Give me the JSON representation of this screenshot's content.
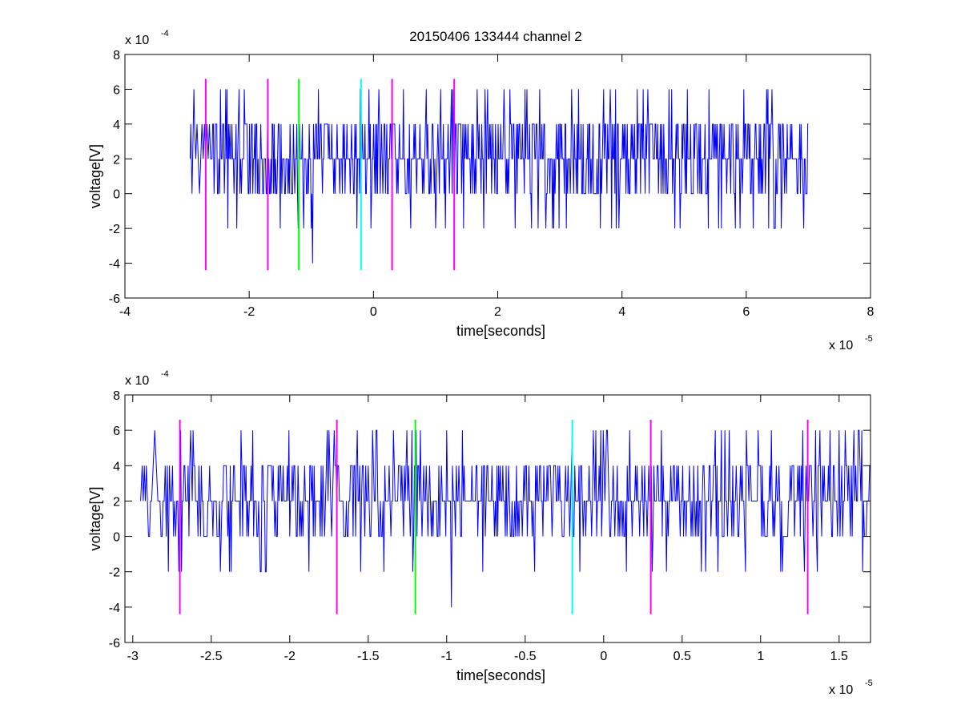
{
  "figure_title": "20150406 133444 channel 2",
  "chart_data": [
    {
      "type": "line",
      "title": "20150406 133444 channel 2",
      "xlabel": "time[seconds]",
      "ylabel": "voltage[V]",
      "x_exponent_label": "x 10",
      "x_exponent": "-5",
      "y_exponent_label": "x 10",
      "y_exponent": "-4",
      "xlim": [
        -4,
        8
      ],
      "ylim": [
        -6,
        8
      ],
      "x_ticks": [
        -4,
        -2,
        0,
        2,
        4,
        6,
        8
      ],
      "x_tick_labels": [
        "-4",
        "-2",
        "0",
        "2",
        "4",
        "6",
        "8"
      ],
      "y_ticks": [
        -6,
        -4,
        -2,
        0,
        2,
        4,
        6,
        8
      ],
      "y_tick_labels": [
        "-6",
        "-4",
        "-2",
        "0",
        "2",
        "4",
        "6",
        "8"
      ],
      "grid": false,
      "legend": "none",
      "series": [
        {
          "color": "#0000ff",
          "x_range": [
            -2.95,
            7.0
          ],
          "level_values": [
            -2,
            0,
            2,
            4,
            6
          ],
          "points": [
            [
              -2.95,
              2
            ],
            [
              -2.94,
              4
            ],
            [
              -2.93,
              2
            ],
            [
              -2.92,
              0
            ],
            [
              -2.91,
              2
            ],
            [
              -2.9,
              4
            ],
            [
              -2.89,
              6
            ],
            [
              -2.88,
              4
            ],
            [
              -2.86,
              2
            ],
            [
              -2.84,
              4
            ],
            [
              -2.82,
              2
            ],
            [
              -2.8,
              0
            ],
            [
              -2.78,
              2
            ],
            [
              -2.76,
              4
            ],
            [
              -2.74,
              2
            ],
            [
              -2.72,
              4
            ],
            [
              -2.7,
              2
            ],
            [
              -2.68,
              4
            ],
            [
              -2.66,
              2
            ],
            [
              -2.64,
              4
            ],
            [
              -2.62,
              2
            ],
            [
              -2.5,
              0
            ],
            [
              -2.45,
              2
            ],
            [
              -2.4,
              0
            ],
            [
              -2.2,
              -2
            ],
            [
              -2.15,
              0
            ],
            [
              -2.1,
              2
            ],
            [
              -1.9,
              0
            ],
            [
              -1.5,
              -2
            ],
            [
              -1.45,
              2
            ],
            [
              -1.3,
              0
            ],
            [
              -1.1,
              2
            ],
            [
              -0.98,
              -4
            ],
            [
              -0.95,
              2
            ],
            [
              -0.5,
              0
            ],
            [
              -0.3,
              4
            ],
            [
              -0.2,
              6
            ],
            [
              0.3,
              2
            ],
            [
              0.6,
              -2
            ],
            [
              0.8,
              2
            ],
            [
              0.85,
              6
            ],
            [
              1.0,
              -2
            ],
            [
              1.05,
              2
            ],
            [
              1.45,
              -2
            ],
            [
              1.5,
              2
            ],
            [
              2.65,
              -2
            ],
            [
              2.7,
              2
            ],
            [
              3.2,
              4
            ],
            [
              3.3,
              6
            ],
            [
              3.95,
              -2
            ],
            [
              4.0,
              2
            ],
            [
              4.8,
              6
            ],
            [
              4.85,
              -2
            ],
            [
              5.2,
              4
            ],
            [
              5.4,
              6
            ],
            [
              5.6,
              -2
            ],
            [
              5.9,
              -2
            ],
            [
              5.95,
              2
            ],
            [
              6.35,
              6
            ],
            [
              7.0,
              4
            ]
          ]
        }
      ],
      "markers": [
        {
          "x": -2.7,
          "y_top": 6.6,
          "y_bottom": -4.4,
          "color": "#ff00ff"
        },
        {
          "x": -1.7,
          "y_top": 6.6,
          "y_bottom": -4.4,
          "color": "#ff00ff"
        },
        {
          "x": -1.2,
          "y_top": 6.6,
          "y_bottom": -4.4,
          "color": "#00ff00"
        },
        {
          "x": -0.2,
          "y_top": 6.6,
          "y_bottom": -4.4,
          "color": "#00ffff"
        },
        {
          "x": 0.3,
          "y_top": 6.6,
          "y_bottom": -4.4,
          "color": "#ff00ff"
        },
        {
          "x": 1.3,
          "y_top": 6.6,
          "y_bottom": -4.4,
          "color": "#ff00ff"
        }
      ]
    },
    {
      "type": "line",
      "title": "",
      "xlabel": "time[seconds]",
      "ylabel": "voltage[V]",
      "x_exponent_label": "x 10",
      "x_exponent": "-5",
      "y_exponent_label": "x 10",
      "y_exponent": "-4",
      "xlim": [
        -3.05,
        1.7
      ],
      "ylim": [
        -6,
        8
      ],
      "x_ticks": [
        -3,
        -2.5,
        -2,
        -1.5,
        -1,
        -0.5,
        0,
        0.5,
        1,
        1.5
      ],
      "x_tick_labels": [
        "-3",
        "-2.5",
        "-2",
        "-1.5",
        "-1",
        "-0.5",
        "0",
        "0.5",
        "1",
        "1.5"
      ],
      "y_ticks": [
        -6,
        -4,
        -2,
        0,
        2,
        4,
        6,
        8
      ],
      "y_tick_labels": [
        "-6",
        "-4",
        "-2",
        "0",
        "2",
        "4",
        "6",
        "8"
      ],
      "grid": false,
      "legend": "none",
      "series": [
        {
          "color": "#0000ff",
          "x_range": [
            -2.95,
            1.7
          ],
          "level_values": [
            -2,
            0,
            2,
            4,
            6
          ],
          "points": [
            [
              -2.95,
              2
            ],
            [
              -2.94,
              4
            ],
            [
              -2.92,
              2
            ],
            [
              -2.9,
              0
            ],
            [
              -2.88,
              2
            ],
            [
              -2.87,
              4
            ],
            [
              -2.86,
              6
            ],
            [
              -2.85,
              4
            ],
            [
              -2.84,
              2
            ],
            [
              -2.82,
              0
            ],
            [
              -2.8,
              2
            ],
            [
              -2.78,
              4
            ],
            [
              -2.76,
              2
            ],
            [
              -2.74,
              0
            ],
            [
              -2.72,
              2
            ],
            [
              -2.7,
              4
            ],
            [
              -2.5,
              2
            ],
            [
              -2.3,
              0
            ],
            [
              -2.15,
              -2
            ],
            [
              -2.1,
              2
            ],
            [
              -1.9,
              2
            ],
            [
              -1.8,
              4
            ],
            [
              -1.75,
              6
            ],
            [
              -1.7,
              2
            ],
            [
              -1.65,
              0
            ],
            [
              -1.5,
              4
            ],
            [
              -1.45,
              6
            ],
            [
              -1.4,
              -2
            ],
            [
              -1.35,
              2
            ],
            [
              -1.2,
              4
            ],
            [
              -1.05,
              4
            ],
            [
              -1.0,
              6
            ],
            [
              -0.97,
              -4
            ],
            [
              -0.95,
              2
            ],
            [
              -0.9,
              6
            ],
            [
              -0.85,
              2
            ],
            [
              -0.6,
              2
            ],
            [
              -0.55,
              0
            ],
            [
              -0.45,
              2
            ],
            [
              -0.35,
              4
            ],
            [
              -0.2,
              6
            ],
            [
              -0.05,
              6
            ],
            [
              0.05,
              2
            ],
            [
              0.25,
              2
            ],
            [
              0.4,
              -2
            ],
            [
              0.45,
              4
            ],
            [
              0.6,
              4
            ],
            [
              0.65,
              -2
            ],
            [
              0.75,
              6
            ],
            [
              0.8,
              6
            ],
            [
              0.85,
              2
            ],
            [
              1.0,
              4
            ],
            [
              1.1,
              4
            ],
            [
              1.2,
              4
            ],
            [
              1.3,
              2
            ],
            [
              1.35,
              6
            ],
            [
              1.4,
              2
            ],
            [
              1.5,
              6
            ],
            [
              1.55,
              4
            ],
            [
              1.6,
              2
            ],
            [
              1.65,
              -2
            ],
            [
              1.7,
              4
            ]
          ]
        }
      ],
      "markers": [
        {
          "x": -2.7,
          "y_top": 6.6,
          "y_bottom": -4.4,
          "color": "#ff00ff"
        },
        {
          "x": -1.7,
          "y_top": 6.6,
          "y_bottom": -4.4,
          "color": "#ff00ff"
        },
        {
          "x": -1.2,
          "y_top": 6.6,
          "y_bottom": -4.4,
          "color": "#00ff00"
        },
        {
          "x": -0.2,
          "y_top": 6.6,
          "y_bottom": -4.4,
          "color": "#00ffff"
        },
        {
          "x": 0.3,
          "y_top": 6.6,
          "y_bottom": -4.4,
          "color": "#ff00ff"
        },
        {
          "x": 1.3,
          "y_top": 6.6,
          "y_bottom": -4.4,
          "color": "#ff00ff"
        }
      ]
    }
  ]
}
